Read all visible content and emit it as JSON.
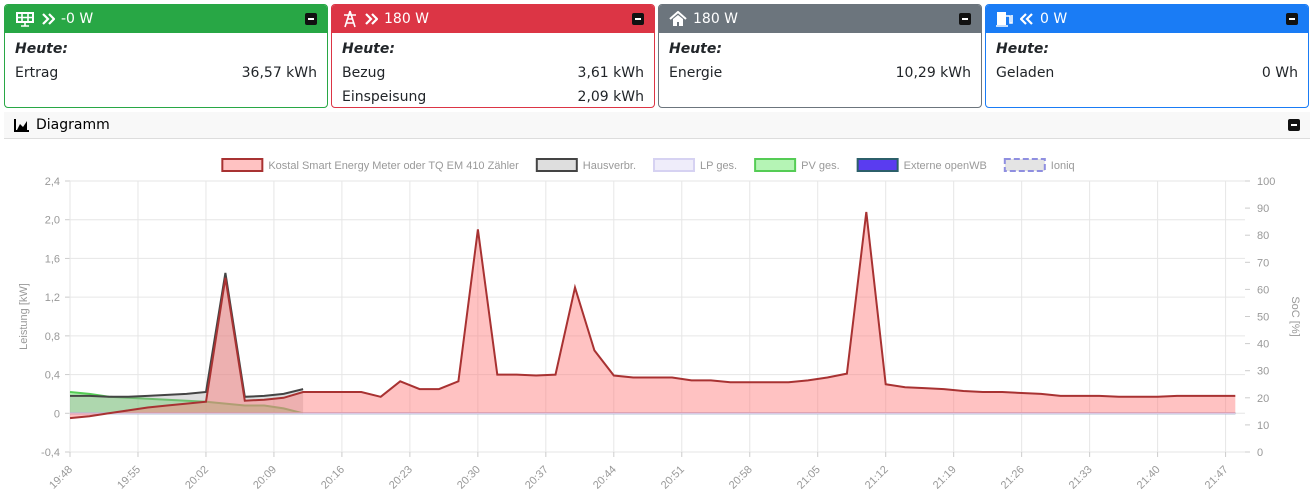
{
  "cards": [
    {
      "title": "-0 W",
      "heading": "Heute:",
      "rows": [
        [
          "Ertrag",
          "36,57 kWh"
        ]
      ]
    },
    {
      "title": "180 W",
      "heading": "Heute:",
      "rows": [
        [
          "Bezug",
          "3,61 kWh"
        ],
        [
          "Einspeisung",
          "2,09 kWh"
        ]
      ]
    },
    {
      "title": "180 W",
      "heading": "Heute:",
      "rows": [
        [
          "Energie",
          "10,29 kWh"
        ]
      ]
    },
    {
      "title": "0 W",
      "heading": "Heute:",
      "rows": [
        [
          "Geladen",
          "0 Wh"
        ]
      ]
    }
  ],
  "diagram": {
    "title": "Diagramm"
  },
  "chart_data": {
    "type": "line",
    "ylabel": "Leistung [kW]",
    "y2label": "SoC [%]",
    "x": [
      "19:48",
      "19:50",
      "19:52",
      "19:54",
      "19:56",
      "19:58",
      "20:00",
      "20:02",
      "20:04",
      "20:06",
      "20:08",
      "20:10",
      "20:12",
      "20:14",
      "20:16",
      "20:18",
      "20:20",
      "20:22",
      "20:24",
      "20:26",
      "20:28",
      "20:30",
      "20:32",
      "20:34",
      "20:36",
      "20:38",
      "20:40",
      "20:42",
      "20:44",
      "20:46",
      "20:48",
      "20:50",
      "20:52",
      "20:54",
      "20:56",
      "20:58",
      "21:00",
      "21:02",
      "21:04",
      "21:06",
      "21:08",
      "21:10",
      "21:12",
      "21:14",
      "21:16",
      "21:18",
      "21:20",
      "21:22",
      "21:24",
      "21:26",
      "21:28",
      "21:30",
      "21:32",
      "21:34",
      "21:36",
      "21:38",
      "21:40",
      "21:42",
      "21:44",
      "21:46",
      "21:48"
    ],
    "xlim": [
      "19:48",
      "21:49"
    ],
    "xticks": [
      "19:48",
      "19:55",
      "20:02",
      "20:09",
      "20:16",
      "20:23",
      "20:30",
      "20:37",
      "20:44",
      "20:51",
      "20:58",
      "21:05",
      "21:12",
      "21:19",
      "21:26",
      "21:33",
      "21:40",
      "21:47"
    ],
    "ylim": [
      -0.4,
      2.4
    ],
    "yticks": [
      {
        "value": -0.4,
        "label": "-0,4"
      },
      0,
      {
        "value": 0.4,
        "label": "0,4"
      },
      {
        "value": 0.8,
        "label": "0,8"
      },
      {
        "value": 1.2,
        "label": "1,2"
      },
      {
        "value": 1.6,
        "label": "1,6"
      },
      {
        "value": 2.0,
        "label": "2,0"
      },
      {
        "value": 2.4,
        "label": "2,4"
      }
    ],
    "y2lim": [
      0,
      100
    ],
    "y2ticks": [
      0,
      10,
      20,
      30,
      40,
      50,
      60,
      70,
      80,
      90,
      100
    ],
    "grid": true,
    "legend": "top",
    "series": [
      {
        "name": "Kostal Smart Energy Meter oder TQ EM 410 Zähler",
        "color": "#a83232",
        "fill": "rgba(255,120,120,0.45)",
        "values": [
          -0.05,
          -0.03,
          0,
          0.03,
          0.06,
          0.08,
          0.1,
          0.12,
          1.4,
          0.13,
          0.14,
          0.16,
          0.22,
          0.22,
          0.22,
          0.22,
          0.17,
          0.33,
          0.25,
          0.25,
          0.33,
          1.9,
          0.4,
          0.4,
          0.39,
          0.4,
          1.3,
          0.65,
          0.39,
          0.37,
          0.37,
          0.37,
          0.34,
          0.34,
          0.32,
          0.32,
          0.32,
          0.32,
          0.34,
          0.37,
          0.41,
          2.08,
          0.3,
          0.27,
          0.26,
          0.25,
          0.23,
          0.22,
          0.22,
          0.21,
          0.2,
          0.18,
          0.18,
          0.18,
          0.17,
          0.17,
          0.17,
          0.18,
          0.18,
          0.18,
          0.18
        ]
      },
      {
        "name": "Hausverbr.",
        "color": "#444444",
        "fill": "rgba(160,160,160,0.35)",
        "values": [
          0.18,
          0.18,
          0.17,
          0.17,
          0.18,
          0.19,
          0.2,
          0.22,
          1.45,
          0.17,
          0.18,
          0.2,
          0.25,
          null,
          null,
          null,
          null,
          null,
          null,
          null,
          null,
          null,
          null,
          null,
          null,
          null,
          null,
          null,
          null,
          null,
          null,
          null,
          null,
          null,
          null,
          null,
          null,
          null,
          null,
          null,
          null,
          null,
          null,
          null,
          null,
          null,
          null,
          null,
          null,
          null,
          null,
          null,
          null,
          null,
          null,
          null,
          null,
          null,
          null,
          null,
          null
        ]
      },
      {
        "name": "LP ges.",
        "color": "#d6d2f2",
        "fill": "rgba(224,220,245,0.5)",
        "values": [
          0,
          0,
          0,
          0,
          0,
          0,
          0,
          0,
          0,
          0,
          0,
          0,
          0,
          0,
          0,
          0,
          0,
          0,
          0,
          0,
          0,
          0,
          0,
          0,
          0,
          0,
          0,
          0,
          0,
          0,
          0,
          0,
          0,
          0,
          0,
          0,
          0,
          0,
          0,
          0,
          0,
          0,
          0,
          0,
          0,
          0,
          0,
          0,
          0,
          0,
          0,
          0,
          0,
          0,
          0,
          0,
          0,
          0,
          0,
          0,
          0
        ]
      },
      {
        "name": "PV ges.",
        "color": "#55cc55",
        "fill": "rgba(120,235,120,0.55)",
        "values": [
          0.22,
          0.2,
          0.17,
          0.16,
          0.15,
          0.14,
          0.13,
          0.12,
          0.1,
          0.08,
          0.08,
          0.05,
          0,
          null,
          null,
          null,
          null,
          null,
          null,
          null,
          null,
          null,
          null,
          null,
          null,
          null,
          null,
          null,
          null,
          null,
          null,
          null,
          null,
          null,
          null,
          null,
          null,
          null,
          null,
          null,
          null,
          null,
          null,
          null,
          null,
          null,
          null,
          null,
          null,
          null,
          null,
          null,
          null,
          null,
          null,
          null,
          null,
          null,
          null,
          null,
          null
        ]
      },
      {
        "name": "Externe openWB",
        "color": "#2c5f6a",
        "fill": "#5a3cf0",
        "values": [
          0,
          0,
          0,
          0,
          0,
          0,
          0,
          0,
          0,
          0,
          0,
          0,
          0,
          0,
          0,
          0,
          0,
          0,
          0,
          0,
          0,
          0,
          0,
          0,
          0,
          0,
          0,
          0,
          0,
          0,
          0,
          0,
          0,
          0,
          0,
          0,
          0,
          0,
          0,
          0,
          0,
          0,
          0,
          0,
          0,
          0,
          0,
          0,
          0,
          0,
          0,
          0,
          0,
          0,
          0,
          0,
          0,
          0,
          0,
          0,
          0
        ]
      },
      {
        "name": "Ioniq",
        "color": "#8f8fe0",
        "fill": "rgba(210,210,210,0.6)",
        "dashed": true,
        "axis": "y2",
        "values": [
          null,
          null,
          null,
          null,
          null,
          null,
          null,
          null,
          null,
          null,
          null,
          null,
          null,
          null,
          null,
          null,
          null,
          null,
          null,
          null,
          null,
          null,
          null,
          null,
          null,
          null,
          null,
          null,
          null,
          null,
          null,
          null,
          null,
          null,
          null,
          null,
          null,
          null,
          null,
          null,
          null,
          null,
          null,
          null,
          null,
          null,
          null,
          null,
          null,
          null,
          null,
          null,
          null,
          null,
          null,
          null,
          null,
          null,
          null,
          null,
          null
        ]
      }
    ]
  }
}
